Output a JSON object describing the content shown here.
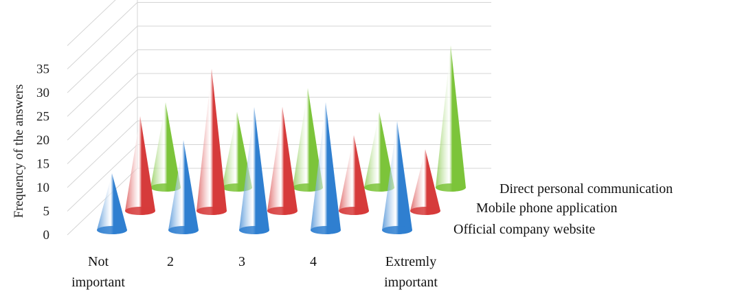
{
  "chart_data": {
    "type": "bar",
    "style": "3d-cone",
    "ylabel": "Frequency of the answers",
    "xlabel": "",
    "ylim": [
      0,
      35
    ],
    "yticks": [
      0,
      5,
      10,
      15,
      20,
      25,
      30,
      35
    ],
    "grid": true,
    "categories": [
      [
        "Not",
        "important"
      ],
      [
        "2"
      ],
      [
        "3"
      ],
      [
        "4"
      ],
      [
        "Extremly",
        "important"
      ]
    ],
    "series": [
      {
        "name": "Official company website",
        "color": "#2f7fd0",
        "values": [
          12,
          19,
          26,
          27,
          23
        ]
      },
      {
        "name": "Mobile phone application",
        "color": "#d63b3b",
        "values": [
          20,
          30,
          22,
          16,
          13
        ]
      },
      {
        "name": "Direct personal communication",
        "color": "#7cc43a",
        "values": [
          18,
          16,
          21,
          16,
          30
        ]
      }
    ]
  }
}
